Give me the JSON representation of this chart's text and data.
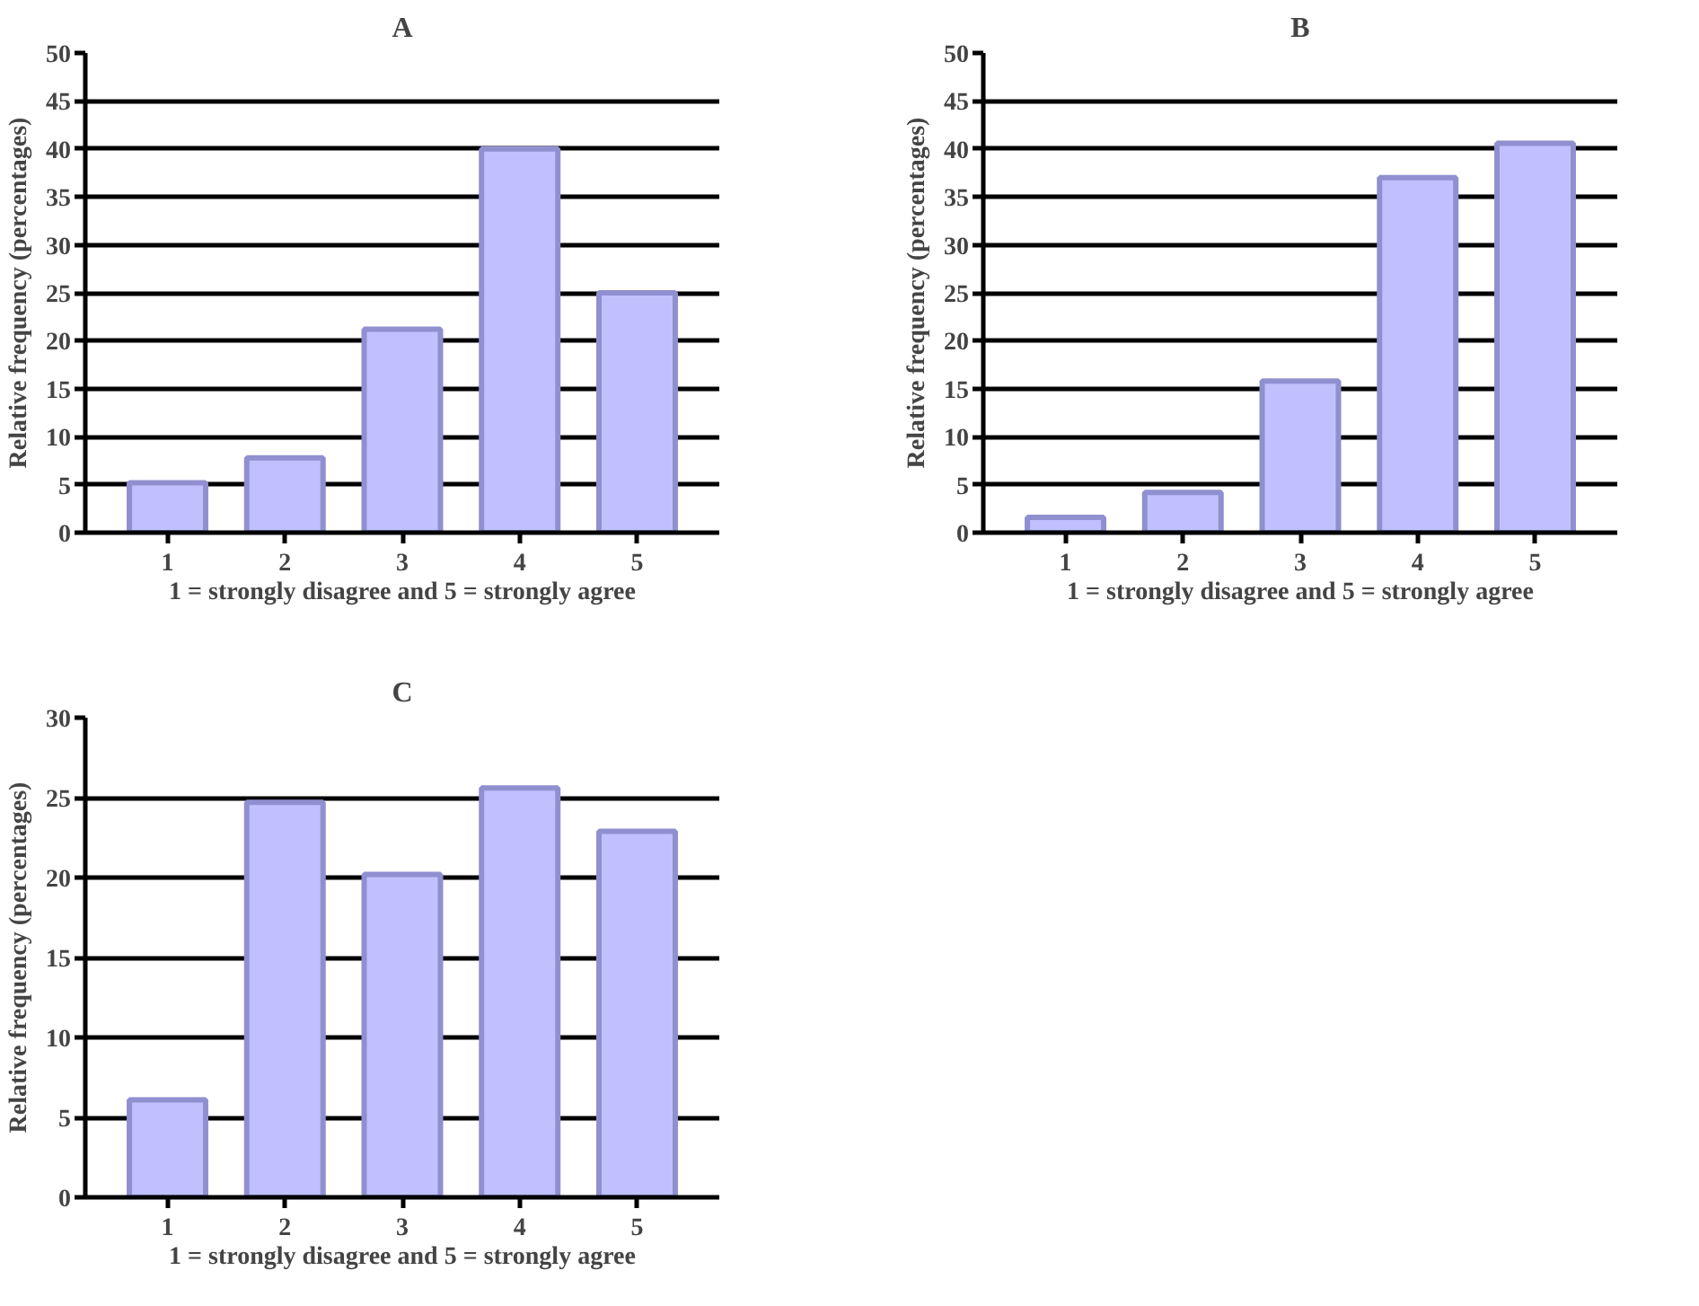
{
  "chart_data": [
    {
      "type": "bar",
      "title": "A",
      "xlabel": "1 = strongly disagree and 5 = strongly agree",
      "ylabel": "Relative frequency (percentages)",
      "categories": [
        "1",
        "2",
        "3",
        "4",
        "5"
      ],
      "values": [
        5.2,
        7.8,
        21.2,
        40,
        25
      ],
      "color": "#c0c0ff",
      "ylim": [
        0,
        50
      ],
      "yticks": [
        0,
        5,
        10,
        15,
        20,
        25,
        30,
        35,
        40,
        45,
        50
      ],
      "grid": "y"
    },
    {
      "type": "bar",
      "title": "B",
      "xlabel": "1 = strongly disagree and 5 = strongly agree",
      "ylabel": "Relative frequency (percentages)",
      "categories": [
        "1",
        "2",
        "3",
        "4",
        "5"
      ],
      "values": [
        1.6,
        4.2,
        15.8,
        37,
        40.6
      ],
      "color": "#c0c0ff",
      "ylim": [
        0,
        50
      ],
      "yticks": [
        0,
        5,
        10,
        15,
        20,
        25,
        30,
        35,
        40,
        45,
        50
      ],
      "grid": "y"
    },
    {
      "type": "bar",
      "title": "C",
      "xlabel": "1 = strongly disagree and 5 = strongly agree",
      "ylabel": "Relative frequency (percentages)",
      "categories": [
        "1",
        "2",
        "3",
        "4",
        "5"
      ],
      "values": [
        6.1,
        24.7,
        20.2,
        25.6,
        22.9
      ],
      "color": "#c0c0ff",
      "ylim": [
        0,
        30
      ],
      "yticks": [
        0,
        5,
        10,
        15,
        20,
        25,
        30
      ],
      "grid": "y"
    }
  ]
}
